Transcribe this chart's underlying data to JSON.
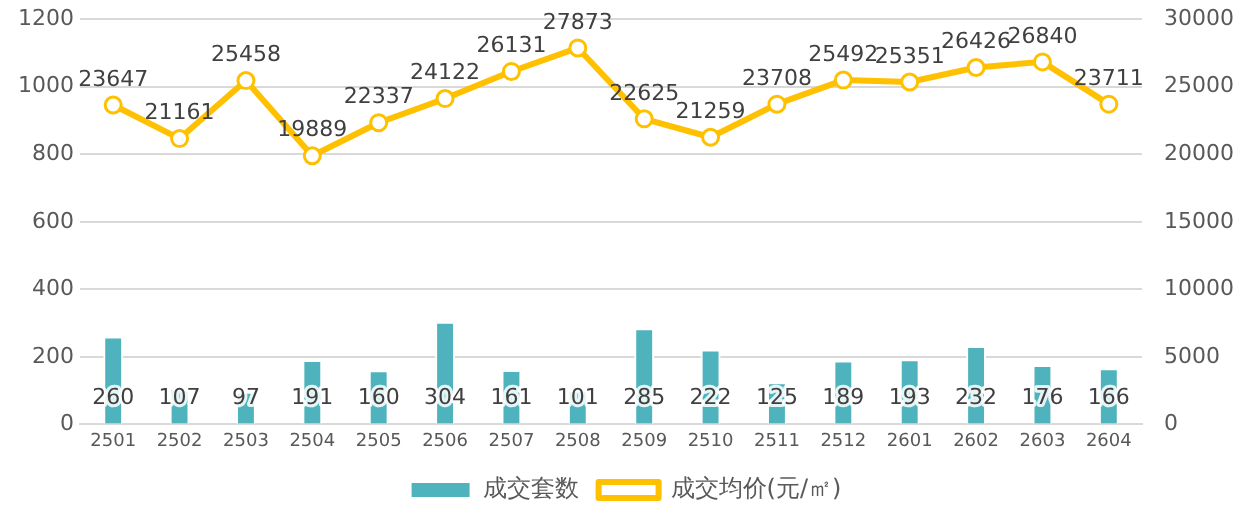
{
  "chart_data": {
    "type": "bar",
    "categories": [
      "2501",
      "2502",
      "2503",
      "2504",
      "2505",
      "2506",
      "2507",
      "2508",
      "2509",
      "2510",
      "2511",
      "2512",
      "2601",
      "2602",
      "2603",
      "2604"
    ],
    "series": [
      {
        "name": "成交套数",
        "color": "#4fb3bd",
        "values": [
          260,
          107,
          97,
          191,
          160,
          304,
          161,
          101,
          285,
          222,
          125,
          189,
          193,
          232,
          176,
          166
        ]
      },
      {
        "name": "成交均价(元/㎡)",
        "type": "line",
        "axis": "y2",
        "color": "#ffc000",
        "marker": "circle",
        "values": [
          23647,
          21161,
          25458,
          19889,
          22337,
          24122,
          26131,
          27873,
          22625,
          21259,
          23708,
          25492,
          25351,
          26426,
          26840,
          23711
        ]
      }
    ],
    "ylim": [
      0,
      1200
    ],
    "yticks": [
      0,
      200,
      400,
      600,
      800,
      1000,
      1200
    ],
    "y2lim": [
      0,
      30000
    ],
    "y2ticks": [
      0,
      5000,
      10000,
      15000,
      20000,
      25000,
      30000
    ],
    "grid": "y",
    "legend": "bottom",
    "data_labels": true
  }
}
